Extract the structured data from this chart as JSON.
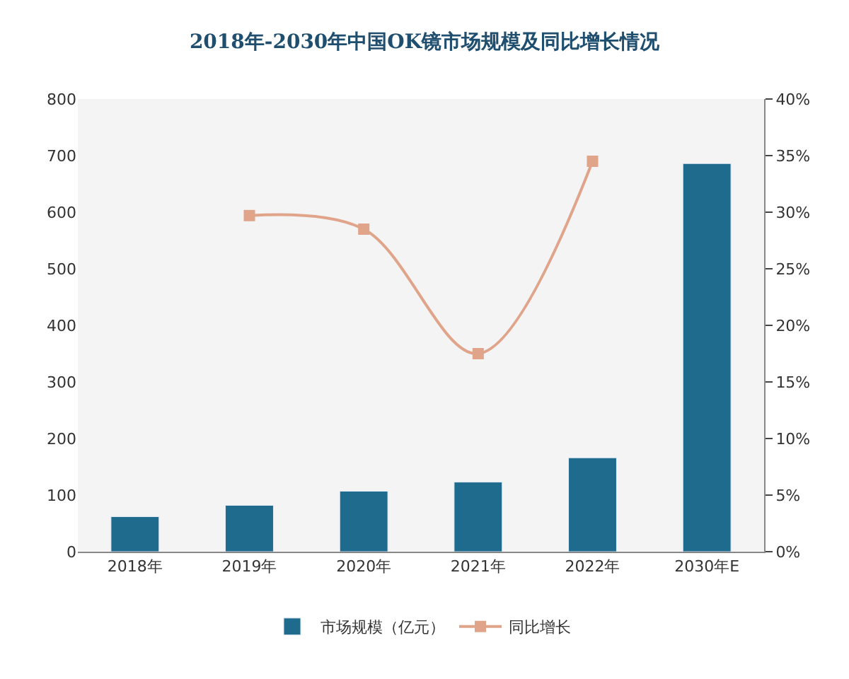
{
  "chart_data": {
    "type": "bar",
    "title": "2018年-2030年中国OK镜市场规模及同比增长情况",
    "categories": [
      "2018年",
      "2019年",
      "2020年",
      "2021年",
      "2022年",
      "2030年E"
    ],
    "series": [
      {
        "name": "市场规模（亿元）",
        "color": "#1f6b8e",
        "values": [
          62,
          82,
          107,
          123,
          166,
          686
        ]
      },
      {
        "name": "同比增长",
        "type": "line",
        "axis": "y2",
        "color": "#e0a48a",
        "marker": "square",
        "values": [
          null,
          29.7,
          28.5,
          17.5,
          34.5,
          null
        ]
      }
    ],
    "ylim": [
      0,
      800
    ],
    "yticks": [
      0,
      100,
      200,
      300,
      400,
      500,
      600,
      700,
      800
    ],
    "y2lim": [
      0,
      40
    ],
    "y2ticks": [
      {
        "value": 0,
        "label": "0%"
      },
      {
        "value": 5,
        "label": "5%"
      },
      {
        "value": 10,
        "label": "10%"
      },
      {
        "value": 15,
        "label": "15%"
      },
      {
        "value": 20,
        "label": "20%"
      },
      {
        "value": 25,
        "label": "25%"
      },
      {
        "value": 30,
        "label": "30%"
      },
      {
        "value": 35,
        "label": "35%"
      },
      {
        "value": 40,
        "label": "40%"
      }
    ],
    "grid": false,
    "legend": "bottom"
  }
}
